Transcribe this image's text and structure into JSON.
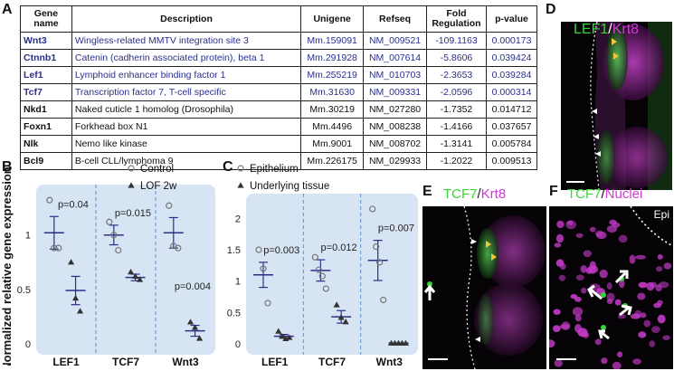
{
  "panels": {
    "a": "A",
    "b": "B",
    "c": "C",
    "d": "D",
    "e": "E",
    "f": "F"
  },
  "table": {
    "headers": [
      "Gene name",
      "Description",
      "Unigene",
      "Refseq",
      "Fold Regulation",
      "p-value"
    ],
    "rows": [
      {
        "gene": "Wnt3",
        "desc": "Wingless-related MMTV integration site 3",
        "unigene": "Mm.159091",
        "refseq": "NM_009521",
        "fold": "-109.1163",
        "p": "0.000173",
        "highlight": true
      },
      {
        "gene": "Ctnnb1",
        "desc": "Catenin (cadherin associated protein), beta 1",
        "unigene": "Mm.291928",
        "refseq": "NM_007614",
        "fold": "-5.8606",
        "p": "0.039424",
        "highlight": true
      },
      {
        "gene": "Lef1",
        "desc": "Lymphoid enhancer binding factor 1",
        "unigene": "Mm.255219",
        "refseq": "NM_010703",
        "fold": "-2.3653",
        "p": "0.039284",
        "highlight": true
      },
      {
        "gene": "Tcf7",
        "desc": "Transcription factor 7, T-cell specific",
        "unigene": "Mm.31630",
        "refseq": "NM_009331",
        "fold": "-2.0596",
        "p": "0.000314",
        "highlight": true
      },
      {
        "gene": "Nkd1",
        "desc": "Naked cuticle 1 homolog (Drosophila)",
        "unigene": "Mm.30219",
        "refseq": "NM_027280",
        "fold": "-1.7352",
        "p": "0.014712",
        "highlight": false
      },
      {
        "gene": "Foxn1",
        "desc": "Forkhead box N1",
        "unigene": "Mm.4496",
        "refseq": "NM_008238",
        "fold": "-1.4166",
        "p": "0.037657",
        "highlight": false
      },
      {
        "gene": "Nlk",
        "desc": "Nemo like kinase",
        "unigene": "Mm.9001",
        "refseq": "NM_008702",
        "fold": "-1.3141",
        "p": "0.005784",
        "highlight": false
      },
      {
        "gene": "Bcl9",
        "desc": "B-cell CLL/lymphoma 9",
        "unigene": "Mm.226175",
        "refseq": "NM_029933",
        "fold": "-1.2022",
        "p": "0.009513",
        "highlight": false
      }
    ]
  },
  "chart_data": [
    {
      "type": "scatter",
      "panel": "B",
      "ylabel": "Normalized relative gene expression",
      "ylim": [
        0,
        1.38
      ],
      "yticks": [
        0,
        0.5,
        1
      ],
      "legend": [
        "Control",
        "LOF 2w"
      ],
      "groups": [
        {
          "label": "LEF1",
          "p": "p=0.04",
          "series": [
            {
              "marker": "circle",
              "points": [
                1.32,
                0.88,
                0.88
              ],
              "mean": 1.02,
              "sem": 0.15
            },
            {
              "marker": "triangle",
              "points": [
                0.75,
                0.42,
                0.3
              ],
              "mean": 0.49,
              "sem": 0.13
            }
          ]
        },
        {
          "label": "TCF7",
          "p": "p=0.015",
          "series": [
            {
              "marker": "circle",
              "points": [
                1.12,
                1.0,
                0.86
              ],
              "mean": 1.0,
              "sem": 0.09
            },
            {
              "marker": "triangle",
              "points": [
                0.66,
                0.62,
                0.59
              ],
              "mean": 0.61,
              "sem": 0.03
            }
          ]
        },
        {
          "label": "Wnt3",
          "p": "p=0.004",
          "series": [
            {
              "marker": "circle",
              "points": [
                1.27,
                0.9,
                0.88
              ],
              "mean": 1.02,
              "sem": 0.14
            },
            {
              "marker": "triangle",
              "points": [
                0.2,
                0.15,
                0.05
              ],
              "mean": 0.12,
              "sem": 0.05
            }
          ]
        }
      ]
    },
    {
      "type": "scatter",
      "panel": "C",
      "ylim": [
        0,
        2.25
      ],
      "yticks": [
        0,
        0.5,
        1,
        1.5,
        2
      ],
      "legend": [
        "Epithelium",
        "Underlying tissue"
      ],
      "groups": [
        {
          "label": "LEF1",
          "p": "p=0.003",
          "series": [
            {
              "marker": "circle",
              "points": [
                1.5,
                1.2,
                0.65
              ],
              "mean": 1.1,
              "sem": 0.2
            },
            {
              "marker": "triangle",
              "points": [
                0.2,
                0.12,
                0.08,
                0.1
              ],
              "mean": 0.12,
              "sem": 0.03
            }
          ]
        },
        {
          "label": "TCF7",
          "p": "p=0.012",
          "series": [
            {
              "marker": "circle",
              "points": [
                1.38,
                1.18,
                1.08,
                0.88
              ],
              "mean": 1.17,
              "sem": 0.17
            },
            {
              "marker": "triangle",
              "points": [
                0.62,
                0.42,
                0.35
              ],
              "mean": 0.43,
              "sem": 0.1
            }
          ]
        },
        {
          "label": "Wnt3",
          "p": "p=0.007",
          "series": [
            {
              "marker": "circle",
              "points": [
                2.15,
                1.55,
                1.3,
                0.7
              ],
              "mean": 1.33,
              "sem": 0.32
            },
            {
              "marker": "triangle",
              "points": [
                0.01,
                0.01,
                0.01,
                0.01,
                0.01
              ],
              "mean": 0.01,
              "sem": 0.004
            }
          ]
        }
      ]
    }
  ],
  "images": {
    "d": {
      "label1": "LEF1",
      "sep": "/",
      "label2": "Krt8"
    },
    "e": {
      "label1": "TCF7",
      "sep": "/",
      "label2": "Krt8"
    },
    "f": {
      "label1": "TCF7",
      "sep": "/",
      "label2": "Nuclei",
      "corner": "Epi"
    }
  },
  "colors": {
    "blue_text": "#2a2f8c",
    "plot_bg": "#d7e4f3",
    "green": "#39d43a",
    "magenta": "#d23ad6",
    "marker": "#777777",
    "triangle": "#333333"
  }
}
